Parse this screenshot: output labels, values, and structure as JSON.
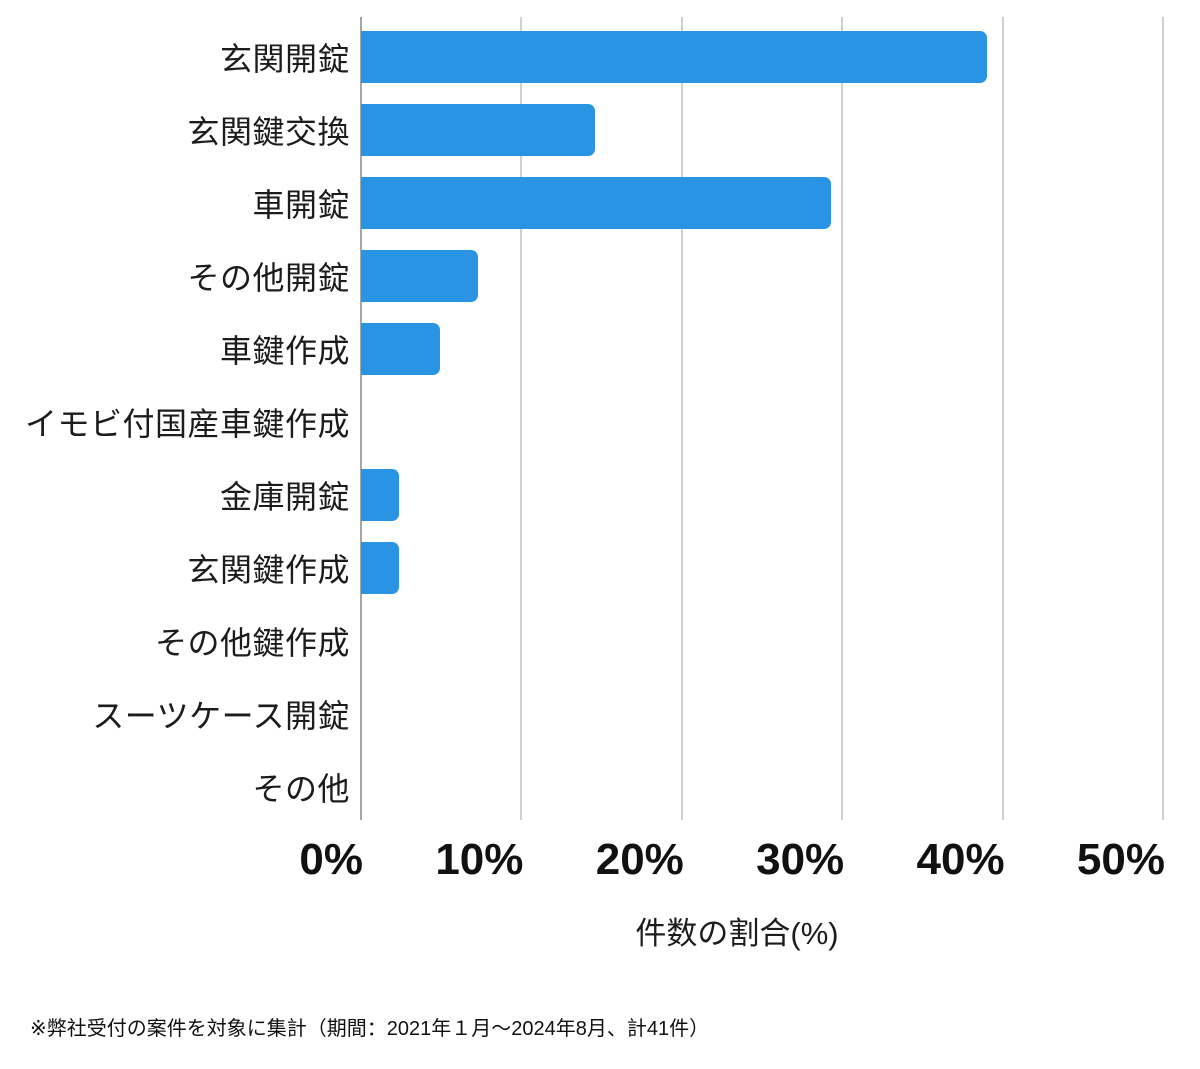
{
  "chart_data": {
    "type": "bar",
    "orientation": "horizontal",
    "categories": [
      "玄関開錠",
      "玄関鍵交換",
      "車開錠",
      "その他開錠",
      "車鍵作成",
      "イモビ付国産車鍵作成",
      "金庫開錠",
      "玄関鍵作成",
      "その他鍵作成",
      "スーツケース開錠",
      "その他"
    ],
    "values": [
      39.0,
      14.6,
      29.3,
      7.3,
      4.9,
      0,
      2.4,
      2.4,
      0,
      0,
      0
    ],
    "title": "",
    "xlabel": "件数の割合(%)",
    "ylabel": "",
    "xlim": [
      0,
      50
    ],
    "x_tick_labels": [
      "0%",
      "10%",
      "20%",
      "30%",
      "40%",
      "50%"
    ],
    "x_tick_values": [
      0,
      10,
      20,
      30,
      40,
      50
    ],
    "grid": "vertical-only",
    "legend": "none",
    "colors": {
      "bar": "#2a94e4",
      "gridline": "#cfcfcf",
      "zero_axis_line": "#a6a6a6",
      "text": "#1c1c1c"
    }
  },
  "footnote": {
    "text": "※弊社受付の案件を対象に集計（期間：2021年１月～2024年8月、計41件）"
  }
}
